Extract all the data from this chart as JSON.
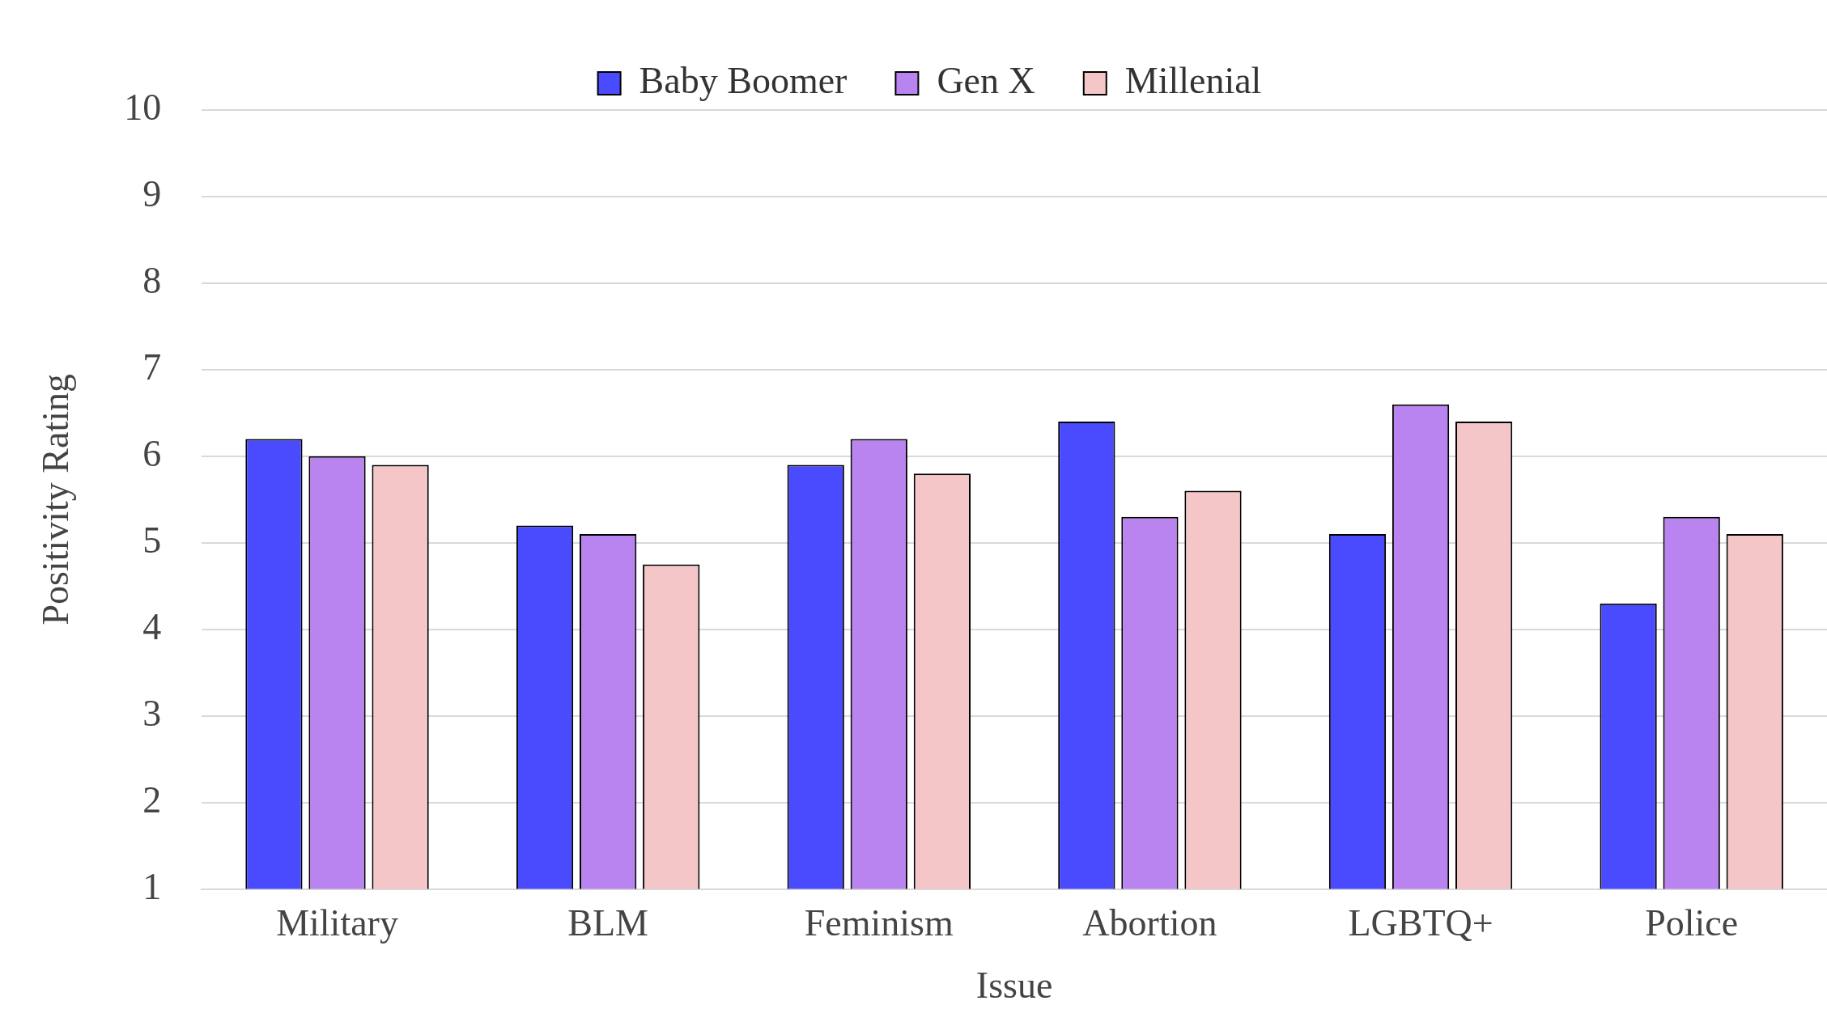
{
  "chart_data": {
    "type": "bar",
    "xlabel": "Issue",
    "ylabel": "Positivity Rating",
    "categories": [
      "Military",
      "BLM",
      "Feminism",
      "Abortion",
      "LGBTQ+",
      "Police"
    ],
    "series": [
      {
        "name": "Baby Boomer",
        "color": "#4a4aff",
        "values": [
          6.2,
          5.2,
          5.9,
          6.4,
          5.1,
          4.3
        ]
      },
      {
        "name": "Gen X",
        "color": "#b983f0",
        "values": [
          6.0,
          5.1,
          6.2,
          5.3,
          6.6,
          5.3
        ]
      },
      {
        "name": "Millenial",
        "color": "#f4c6c8",
        "values": [
          5.9,
          4.75,
          5.8,
          5.6,
          6.4,
          5.1
        ]
      }
    ],
    "ylim": [
      1,
      10
    ],
    "yticks": [
      1,
      2,
      3,
      4,
      5,
      6,
      7,
      8,
      9,
      10
    ],
    "grid": "y",
    "legend": "top"
  }
}
